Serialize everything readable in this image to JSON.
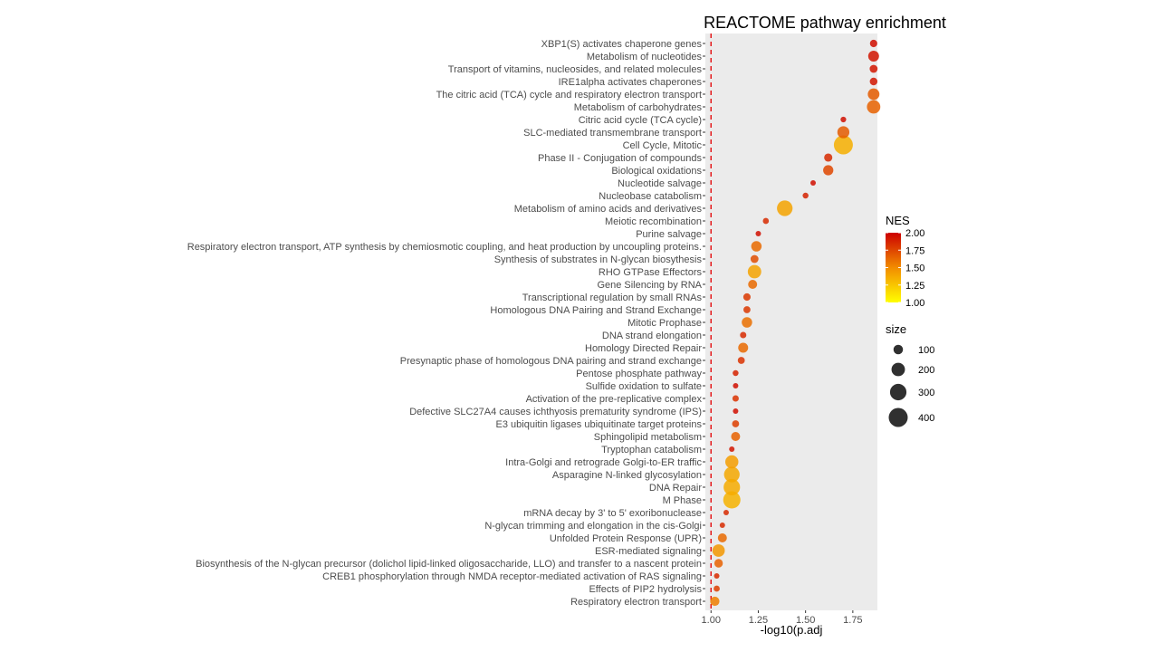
{
  "chart_data": {
    "type": "scatter",
    "title": "REACTOME pathway enrichment",
    "xlabel": "-log10(p.adj",
    "ylabel": "",
    "xlim": [
      0.97,
      1.88
    ],
    "x_ticks": [
      1.0,
      1.25,
      1.5,
      1.75
    ],
    "x_tick_labels": [
      "1.00",
      "1.25",
      "1.50",
      "1.75"
    ],
    "reference_line": {
      "x": 1.0,
      "style": "dashed",
      "color": "#e41a1c"
    },
    "grid": false,
    "panel_background": "#ebebeb",
    "color_scale": {
      "name": "NES",
      "low_color": "#ffff00",
      "mid_color": "#f28c00",
      "high_color": "#cc0000",
      "domain": [
        1.0,
        2.0
      ],
      "ticks": [
        2.0,
        1.75,
        1.5,
        1.25,
        1.0
      ],
      "tick_labels": [
        "2.00",
        "1.75",
        "1.50",
        "1.25",
        "1.00"
      ]
    },
    "size_scale": {
      "name": "size",
      "ticks": [
        100,
        200,
        300,
        400
      ],
      "tick_labels": [
        "100",
        "200",
        "300",
        "400"
      ]
    },
    "legend_position": "right",
    "points": [
      {
        "term": "XBP1(S) activates chaperone genes",
        "x": 1.86,
        "nes": 1.95,
        "size": 60
      },
      {
        "term": "Metabolism of nucleotides",
        "x": 1.86,
        "nes": 1.93,
        "size": 130
      },
      {
        "term": "Transport of vitamins, nucleosides, and related molecules",
        "x": 1.86,
        "nes": 1.92,
        "size": 70
      },
      {
        "term": "IRE1alpha activates chaperones",
        "x": 1.86,
        "nes": 1.92,
        "size": 65
      },
      {
        "term": "The citric acid (TCA) cycle and respiratory electron transport",
        "x": 1.86,
        "nes": 1.68,
        "size": 150
      },
      {
        "term": "Metabolism of carbohydrates",
        "x": 1.86,
        "nes": 1.65,
        "size": 200
      },
      {
        "term": "Citric acid cycle (TCA cycle)",
        "x": 1.7,
        "nes": 1.95,
        "size": 35
      },
      {
        "term": "SLC-mediated transmembrane transport",
        "x": 1.7,
        "nes": 1.68,
        "size": 160
      },
      {
        "term": "Cell Cycle, Mitotic",
        "x": 1.7,
        "nes": 1.35,
        "size": 400
      },
      {
        "term": "Phase II - Conjugation of compounds",
        "x": 1.62,
        "nes": 1.85,
        "size": 75
      },
      {
        "term": "Biological oxidations",
        "x": 1.62,
        "nes": 1.75,
        "size": 115
      },
      {
        "term": "Nucleotide salvage",
        "x": 1.54,
        "nes": 1.95,
        "size": 30
      },
      {
        "term": "Nucleobase catabolism",
        "x": 1.5,
        "nes": 1.88,
        "size": 38
      },
      {
        "term": "Metabolism of amino acids and derivatives",
        "x": 1.39,
        "nes": 1.4,
        "size": 270
      },
      {
        "term": "Meiotic recombination",
        "x": 1.29,
        "nes": 1.85,
        "size": 40
      },
      {
        "term": "Purine salvage",
        "x": 1.25,
        "nes": 1.95,
        "size": 25
      },
      {
        "term": "Respiratory electron transport, ATP synthesis by chemiosmotic coupling, and heat production by uncoupling proteins.",
        "x": 1.24,
        "nes": 1.62,
        "size": 120
      },
      {
        "term": "Synthesis of substrates in N-glycan biosythesis",
        "x": 1.23,
        "nes": 1.72,
        "size": 70
      },
      {
        "term": "RHO GTPase Effectors",
        "x": 1.23,
        "nes": 1.4,
        "size": 200
      },
      {
        "term": "Gene Silencing by RNA",
        "x": 1.22,
        "nes": 1.62,
        "size": 90
      },
      {
        "term": "Transcriptional regulation by small RNAs",
        "x": 1.19,
        "nes": 1.8,
        "size": 60
      },
      {
        "term": "Homologous DNA Pairing and Strand Exchange",
        "x": 1.19,
        "nes": 1.8,
        "size": 55
      },
      {
        "term": "Mitotic Prophase",
        "x": 1.19,
        "nes": 1.6,
        "size": 120
      },
      {
        "term": "DNA strand elongation",
        "x": 1.17,
        "nes": 1.85,
        "size": 45
      },
      {
        "term": "Homology Directed Repair",
        "x": 1.17,
        "nes": 1.62,
        "size": 110
      },
      {
        "term": "Presynaptic phase of homologous DNA pairing and strand exchange",
        "x": 1.16,
        "nes": 1.82,
        "size": 55
      },
      {
        "term": "Pentose phosphate pathway",
        "x": 1.13,
        "nes": 1.88,
        "size": 38
      },
      {
        "term": "Sulfide oxidation to sulfate",
        "x": 1.13,
        "nes": 1.95,
        "size": 18
      },
      {
        "term": "Activation of the pre-replicative complex",
        "x": 1.13,
        "nes": 1.82,
        "size": 45
      },
      {
        "term": "Defective SLC27A4 causes ichthyosis prematurity syndrome (IPS)",
        "x": 1.13,
        "nes": 1.95,
        "size": 12
      },
      {
        "term": "E3 ubiquitin ligases ubiquitinate target proteins",
        "x": 1.13,
        "nes": 1.78,
        "size": 55
      },
      {
        "term": "Sphingolipid metabolism",
        "x": 1.13,
        "nes": 1.65,
        "size": 90
      },
      {
        "term": "Tryptophan catabolism",
        "x": 1.11,
        "nes": 1.92,
        "size": 22
      },
      {
        "term": "Intra-Golgi and retrograde Golgi-to-ER traffic",
        "x": 1.11,
        "nes": 1.42,
        "size": 190
      },
      {
        "term": "Asparagine N-linked glycosylation",
        "x": 1.11,
        "nes": 1.38,
        "size": 270
      },
      {
        "term": "DNA Repair",
        "x": 1.11,
        "nes": 1.36,
        "size": 300
      },
      {
        "term": "M Phase",
        "x": 1.11,
        "nes": 1.33,
        "size": 330
      },
      {
        "term": "mRNA decay by 3' to 5' exoribonuclease",
        "x": 1.08,
        "nes": 1.85,
        "size": 20
      },
      {
        "term": "N-glycan trimming and elongation in the cis-Golgi",
        "x": 1.06,
        "nes": 1.85,
        "size": 12
      },
      {
        "term": "Unfolded Protein Response (UPR)",
        "x": 1.06,
        "nes": 1.62,
        "size": 90
      },
      {
        "term": "ESR-mediated signaling",
        "x": 1.04,
        "nes": 1.45,
        "size": 170
      },
      {
        "term": "Biosynthesis of the N-glycan precursor (dolichol lipid-linked oligosaccharide, LLO) and transfer to a nascent protein",
        "x": 1.04,
        "nes": 1.65,
        "size": 80
      },
      {
        "term": "CREB1 phosphorylation through NMDA receptor-mediated activation of RAS signaling",
        "x": 1.03,
        "nes": 1.85,
        "size": 32
      },
      {
        "term": "Effects of PIP2 hydrolysis",
        "x": 1.03,
        "nes": 1.78,
        "size": 42
      },
      {
        "term": "Respiratory electron transport",
        "x": 1.02,
        "nes": 1.55,
        "size": 95
      }
    ]
  }
}
